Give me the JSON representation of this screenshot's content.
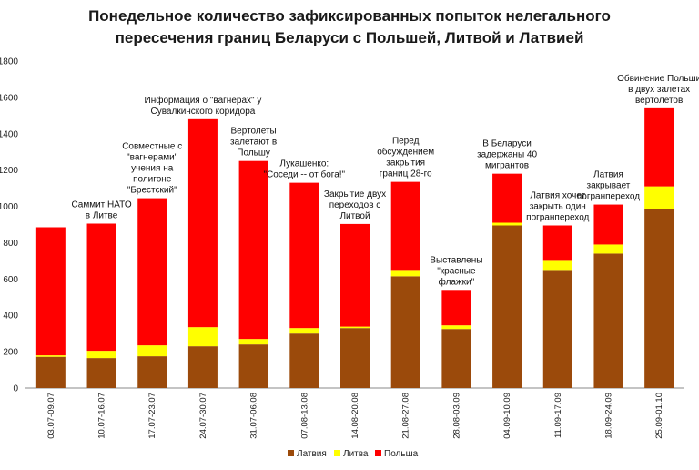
{
  "chart_data": {
    "type": "bar",
    "stacked": true,
    "title_lines": [
      "Понедельное количество зафиксированных попыток нелегального",
      "пересечения границ Беларуси с Польшей, Литвой и Латвией"
    ],
    "categories": [
      "03.07-09.07",
      "10.07-16.07",
      "17.07-23.07",
      "24.07-30.07",
      "31.07-06.08",
      "07.08-13.08",
      "14.08-20.08",
      "21.08-27.08",
      "28.08-03.09",
      "04.09-10.09",
      "11.09-17.09",
      "18.09-24.09",
      "25.09-01.10"
    ],
    "series": [
      {
        "name": "Латвия",
        "color": "#9b4a0b",
        "values": [
          172,
          165,
          175,
          230,
          240,
          300,
          330,
          615,
          325,
          895,
          650,
          740,
          985
        ]
      },
      {
        "name": "Литва",
        "color": "#ffff00",
        "values": [
          8,
          40,
          60,
          105,
          30,
          30,
          8,
          35,
          20,
          15,
          55,
          50,
          125
        ]
      },
      {
        "name": "Польша",
        "color": "#ff0000",
        "values": [
          705,
          700,
          810,
          1145,
          980,
          800,
          565,
          485,
          195,
          270,
          190,
          220,
          430
        ]
      }
    ],
    "ylim": [
      0,
      1800
    ],
    "yticks": [
      0,
      200,
      400,
      600,
      800,
      1000,
      1200,
      1400,
      1600,
      1800
    ],
    "legend_position": "bottom",
    "annotations": [
      {
        "index": 1,
        "lines": [
          "Саммит НАТО",
          "в Литве"
        ]
      },
      {
        "index": 2,
        "lines": [
          "Совместные с",
          "\"вагнерами\"",
          "учения на",
          "полигоне",
          "\"Брестский\""
        ]
      },
      {
        "index": 3,
        "lines": [
          "Информация о \"вагнерах\" у",
          "Сувалкинского коридора"
        ]
      },
      {
        "index": 4,
        "lines": [
          "Вертолеты",
          "залетают в",
          "Польшу"
        ]
      },
      {
        "index": 5,
        "lines": [
          "Лукашенко:",
          "\"Соседи -- от бога!\""
        ]
      },
      {
        "index": 6,
        "lines": [
          "Закрытие двух",
          "переходов с",
          "Литвой"
        ]
      },
      {
        "index": 7,
        "lines": [
          "Перед",
          "обсуждением",
          "закрытия",
          "границ 28-го"
        ]
      },
      {
        "index": 8,
        "lines": [
          "Выставлены",
          "\"красные",
          "флажки\""
        ]
      },
      {
        "index": 9,
        "lines": [
          "В Беларуси",
          "задержаны 40",
          "мигрантов"
        ]
      },
      {
        "index": 10,
        "lines": [
          "Латвия хочет",
          "закрыть один",
          "погранпереход"
        ]
      },
      {
        "index": 11,
        "lines": [
          "Латвия",
          "закрывает",
          "погранпереход"
        ]
      },
      {
        "index": 12,
        "lines": [
          "Обвинение Польши",
          "в двух залетах",
          "вертолетов"
        ]
      }
    ]
  }
}
